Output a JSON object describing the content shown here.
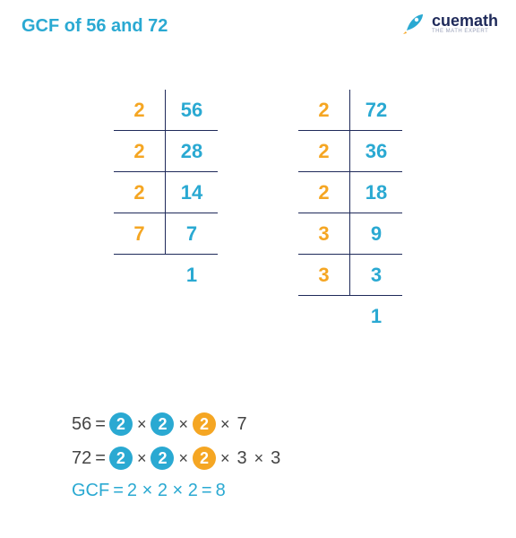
{
  "title": {
    "text": "GCF of 56 and 72",
    "color": "#2aa9d2"
  },
  "logo": {
    "brand": "cuemath",
    "tagline": "THE MATH EXPERT",
    "rocket_color": "#2aa9d2"
  },
  "colors": {
    "divisor": "#f5a623",
    "quotient": "#2aa9d2",
    "text_dark": "#444444",
    "border": "#1f2a5a",
    "circle_blue": "#2aa9d2",
    "circle_orange": "#f5a623",
    "gcf_color": "#2aa9d2"
  },
  "table_a": {
    "rows": [
      {
        "d": "2",
        "q": "56"
      },
      {
        "d": "2",
        "q": "28"
      },
      {
        "d": "2",
        "q": "14"
      },
      {
        "d": "7",
        "q": "7"
      },
      {
        "d": "",
        "q": "1"
      }
    ]
  },
  "table_b": {
    "rows": [
      {
        "d": "2",
        "q": "72"
      },
      {
        "d": "2",
        "q": "36"
      },
      {
        "d": "2",
        "q": "18"
      },
      {
        "d": "3",
        "q": "9"
      },
      {
        "d": "3",
        "q": "3"
      },
      {
        "d": "",
        "q": "1"
      }
    ]
  },
  "eq1": {
    "lhs": "56",
    "eq": "=",
    "factors": [
      {
        "v": "2",
        "circle": "blue"
      },
      {
        "v": "2",
        "circle": "blue"
      },
      {
        "v": "2",
        "circle": "orange"
      },
      {
        "v": "7",
        "circle": null
      }
    ]
  },
  "eq2": {
    "lhs": "72",
    "eq": "=",
    "factors": [
      {
        "v": "2",
        "circle": "blue"
      },
      {
        "v": "2",
        "circle": "blue"
      },
      {
        "v": "2",
        "circle": "orange"
      },
      {
        "v": "3",
        "circle": null
      },
      {
        "v": "3",
        "circle": null
      }
    ]
  },
  "eq3": {
    "lhs": "GCF",
    "eq": "=",
    "expr": "2 × 2 × 2",
    "eq2": "=",
    "result": "8"
  }
}
